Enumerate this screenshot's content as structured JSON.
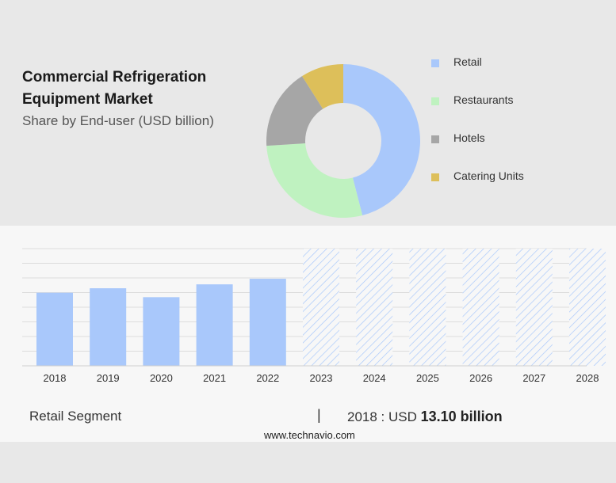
{
  "header": {
    "title": "Commercial Refrigeration Equipment Market",
    "subtitle": "Share by End-user (USD billion)"
  },
  "colors": {
    "retail": "#a9c8fb",
    "restaurants": "#bff2c0",
    "hotels": "#a6a6a6",
    "catering_units": "#ddbf5a",
    "bar": "#a9c8fb",
    "forecast_stripe": "#a9c8fb"
  },
  "chart_data": [
    {
      "type": "pie",
      "variant": "donut",
      "title": "Share by End-user (USD billion)",
      "categories": [
        "Retail",
        "Restaurants",
        "Hotels",
        "Catering Units"
      ],
      "values": [
        46,
        28,
        17,
        9
      ],
      "legend_position": "right"
    },
    {
      "type": "bar",
      "categories": [
        "2018",
        "2019",
        "2020",
        "2021",
        "2022",
        "2023",
        "2024",
        "2025",
        "2026",
        "2027",
        "2028"
      ],
      "values": [
        13.1,
        13.9,
        12.3,
        14.6,
        15.6,
        null,
        null,
        null,
        null,
        null,
        null
      ],
      "forecast_categories": [
        "2023",
        "2024",
        "2025",
        "2026",
        "2027",
        "2028"
      ],
      "ylim": [
        0,
        21
      ],
      "grid": true,
      "xlabel": "",
      "ylabel": ""
    }
  ],
  "footer": {
    "segment_label": "Retail Segment",
    "divider": "|",
    "summary_prefix": "2018 : USD",
    "summary_value": "13.10 billion",
    "source": "www.technavio.com"
  }
}
